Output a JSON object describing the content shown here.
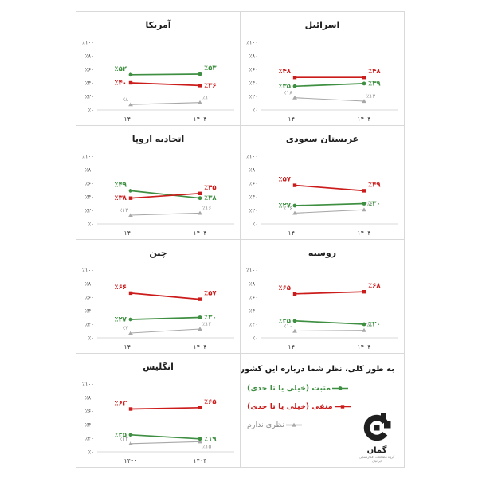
{
  "page": {
    "background": "#ffffff"
  },
  "axis": {
    "x_categories": [
      "۱۴۰۰",
      "۱۴۰۴"
    ],
    "y_ticks": [
      0,
      20,
      40,
      60,
      80,
      100
    ],
    "y_tick_labels": [
      "٪۰",
      "٪۲۰",
      "٪۴۰",
      "٪۶۰",
      "٪۸۰",
      "٪۱۰۰"
    ],
    "ylim": [
      0,
      100
    ],
    "grid": "off",
    "percent_prefix": "٪"
  },
  "colors": {
    "positive": "#3e8f41",
    "negative": "#cc1b1b",
    "no_opinion": "#a8a8a8",
    "gray_label": "#8f8f8f",
    "axis_text": "#595959",
    "tick_text": "#404040",
    "border": "#d9d9d9",
    "title": "#1f1f1f",
    "logo": "#1f1f1f"
  },
  "legend_panel": {
    "question": "به طور کلی، نظر شما درباره این کشورها چیست؟",
    "items": [
      {
        "key": "positive",
        "label": "مثبت (خیلی یا تا حدی)",
        "color": "#3e8f41",
        "marker": "circle"
      },
      {
        "key": "negative",
        "label": "منفی (خیلی یا تا حدی)",
        "color": "#cc1b1b",
        "marker": "square"
      },
      {
        "key": "no_opinion",
        "label": "نظری ندارم",
        "color": "#8f8f8f",
        "marker": "triangle"
      }
    ],
    "logo": {
      "wordmark": "گمان",
      "tagline": "گروه مطالعات افکارسنجی ایرانیان"
    }
  },
  "chart_data": [
    {
      "type": "line",
      "title": "آمریکا",
      "categories": [
        "۱۴۰۰",
        "۱۴۰۴"
      ],
      "ylim": [
        0,
        100
      ],
      "series": [
        {
          "key": "positive",
          "values": [
            52,
            53
          ]
        },
        {
          "key": "negative",
          "values": [
            40,
            36
          ]
        },
        {
          "key": "no_opinion",
          "values": [
            8,
            11
          ]
        }
      ]
    },
    {
      "type": "line",
      "title": "اسرائیل",
      "categories": [
        "۱۴۰۰",
        "۱۴۰۴"
      ],
      "ylim": [
        0,
        100
      ],
      "series": [
        {
          "key": "positive",
          "values": [
            35,
            39
          ]
        },
        {
          "key": "negative",
          "values": [
            48,
            48
          ]
        },
        {
          "key": "no_opinion",
          "values": [
            18,
            13
          ]
        }
      ]
    },
    {
      "type": "line",
      "title": "اتحادیه اروپا",
      "categories": [
        "۱۴۰۰",
        "۱۴۰۴"
      ],
      "ylim": [
        0,
        100
      ],
      "series": [
        {
          "key": "positive",
          "values": [
            49,
            38
          ]
        },
        {
          "key": "negative",
          "values": [
            38,
            45
          ]
        },
        {
          "key": "no_opinion",
          "values": [
            13,
            16
          ]
        }
      ]
    },
    {
      "type": "line",
      "title": "عربستان سعودی",
      "categories": [
        "۱۴۰۰",
        "۱۴۰۴"
      ],
      "ylim": [
        0,
        100
      ],
      "series": [
        {
          "key": "positive",
          "values": [
            27,
            30
          ]
        },
        {
          "key": "negative",
          "values": [
            57,
            49
          ]
        },
        {
          "key": "no_opinion",
          "values": [
            16,
            21
          ]
        }
      ]
    },
    {
      "type": "line",
      "title": "چین",
      "categories": [
        "۱۴۰۰",
        "۱۴۰۴"
      ],
      "ylim": [
        0,
        100
      ],
      "series": [
        {
          "key": "positive",
          "values": [
            27,
            30
          ]
        },
        {
          "key": "negative",
          "values": [
            66,
            57
          ]
        },
        {
          "key": "no_opinion",
          "values": [
            7,
            13
          ]
        }
      ]
    },
    {
      "type": "line",
      "title": "روسیه",
      "categories": [
        "۱۴۰۰",
        "۱۴۰۴"
      ],
      "ylim": [
        0,
        100
      ],
      "series": [
        {
          "key": "positive",
          "values": [
            25,
            20
          ]
        },
        {
          "key": "negative",
          "values": [
            65,
            68
          ]
        },
        {
          "key": "no_opinion",
          "values": [
            10,
            11
          ]
        }
      ]
    },
    {
      "type": "line",
      "title": "انگلیس",
      "categories": [
        "۱۴۰۰",
        "۱۴۰۴"
      ],
      "ylim": [
        0,
        100
      ],
      "series": [
        {
          "key": "positive",
          "values": [
            25,
            19
          ]
        },
        {
          "key": "negative",
          "values": [
            63,
            65
          ]
        },
        {
          "key": "no_opinion",
          "values": [
            12,
            15
          ]
        }
      ]
    }
  ]
}
